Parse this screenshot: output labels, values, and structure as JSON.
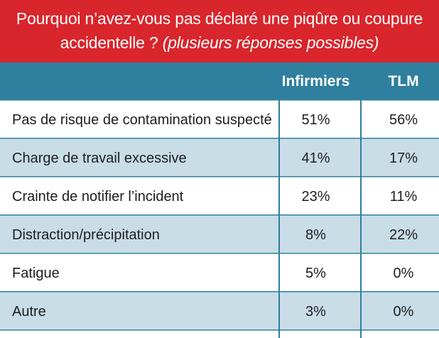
{
  "title": {
    "main": "Pourquoi n’avez-vous pas déclaré une piqûre ou coupure accidentelle ?",
    "subtitle": "(plusieurs réponses possibles)"
  },
  "colors": {
    "title_bg": "#d9252c",
    "header_bg": "#2f7f9e",
    "row_white": "#ffffff",
    "row_blue": "#c9dde7",
    "divider": "#2f7f9e",
    "text": "#1d1d1d",
    "header_text": "#ffffff"
  },
  "chart_data": {
    "type": "table",
    "title": "Pourquoi n’avez-vous pas déclaré une piqûre ou coupure accidentelle ? (plusieurs réponses possibles)",
    "columns": [
      "",
      "Infirmiers",
      "TLM"
    ],
    "categories": [
      "Pas de risque de contamination suspecté",
      "Charge de travail excessive",
      "Crainte de notifier l’incident",
      "Distraction/précipitation",
      "Fatigue",
      "Autre"
    ],
    "series": [
      {
        "name": "Infirmiers",
        "values": [
          51,
          41,
          23,
          8,
          5,
          3
        ],
        "labels": [
          "51%",
          "41%",
          "23%",
          "8%",
          "5%",
          "3%"
        ]
      },
      {
        "name": "TLM",
        "values": [
          56,
          17,
          11,
          22,
          0,
          0
        ],
        "labels": [
          "56%",
          "17%",
          "11%",
          "22%",
          "0%",
          "0%"
        ]
      }
    ],
    "unit": "%"
  }
}
